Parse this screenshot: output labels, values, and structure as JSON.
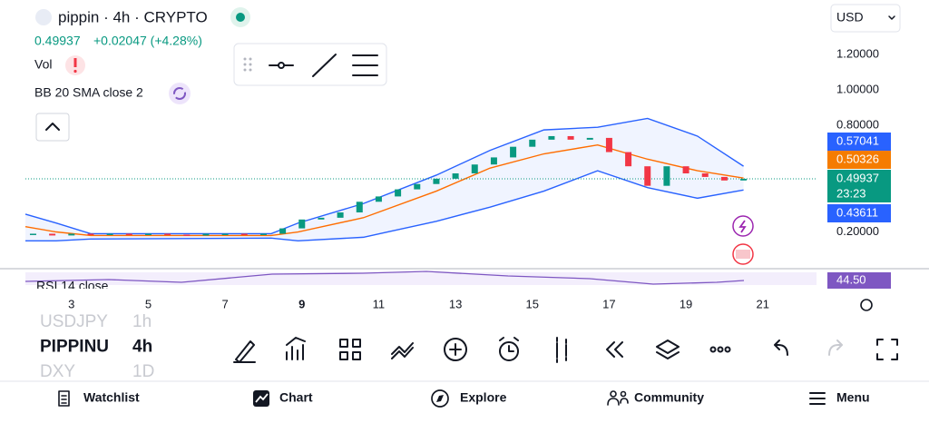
{
  "header": {
    "symbol": "pippin · 4h · CRYPTO",
    "price": "0.49937",
    "change": "+0.02047 (+4.28%)",
    "currency": "USD"
  },
  "indicators": {
    "volume": "Vol",
    "bollinger": "BB 20 SMA close 2",
    "rsi": "RSI 14 close",
    "rsi_value": "44.50"
  },
  "chart_data": {
    "type": "candlestick",
    "x": [
      2.0,
      2.5,
      3.0,
      3.5,
      4.0,
      4.5,
      5.0,
      5.5,
      6.0,
      6.5,
      7.0,
      7.5,
      8.0,
      8.5,
      9.0,
      9.5,
      10.0,
      10.5,
      11.0,
      11.5,
      12.0,
      12.5,
      13.0,
      13.5,
      14.0,
      14.5,
      15.0,
      15.5,
      16.0,
      16.5,
      17.0,
      17.5,
      18.0,
      18.5,
      19.0,
      19.5,
      20.0,
      20.5
    ],
    "values": [
      0.19,
      0.18,
      0.19,
      0.185,
      0.19,
      0.185,
      0.19,
      0.185,
      0.18,
      0.19,
      0.19,
      0.185,
      0.19,
      0.22,
      0.27,
      0.28,
      0.31,
      0.37,
      0.4,
      0.44,
      0.47,
      0.5,
      0.53,
      0.58,
      0.62,
      0.68,
      0.72,
      0.74,
      0.72,
      0.73,
      0.65,
      0.57,
      0.46,
      0.57,
      0.53,
      0.51,
      0.49,
      0.49937
    ],
    "up_color": "#089981",
    "down_color": "#f23645",
    "bands": {
      "x": [
        1.8,
        2.6,
        3.5,
        8.2,
        8.9,
        10.6,
        12.5,
        13.9,
        15.3,
        16.7,
        18.0,
        19.3,
        20.5
      ],
      "upper": [
        0.3,
        0.25,
        0.19,
        0.19,
        0.25,
        0.36,
        0.52,
        0.66,
        0.775,
        0.79,
        0.84,
        0.74,
        0.57041
      ],
      "lower": [
        0.15,
        0.15,
        0.16,
        0.165,
        0.15,
        0.17,
        0.26,
        0.34,
        0.43,
        0.545,
        0.45,
        0.39,
        0.43611
      ],
      "basis": [
        0.23,
        0.2,
        0.18,
        0.18,
        0.2,
        0.28,
        0.43,
        0.56,
        0.64,
        0.69,
        0.61,
        0.545,
        0.50326
      ],
      "band_color": "#2962ff",
      "basis_color": "#ff6d00"
    },
    "price_labels": [
      {
        "value": 0.57041,
        "color": "#2962ff"
      },
      {
        "value": 0.50326,
        "color": "#f57c00"
      },
      {
        "value": 0.49937,
        "color": "#089981",
        "countdown": "23:23"
      },
      {
        "value": 0.43611,
        "color": "#2962ff"
      }
    ],
    "ylim": [
      0,
      1.3
    ],
    "yticks": [
      {
        "value": 1.2,
        "label": "1.20000"
      },
      {
        "value": 1.0,
        "label": "1.00000"
      },
      {
        "value": 0.8,
        "label": "0.80000"
      },
      {
        "value": 0.2,
        "label": "0.20000"
      }
    ],
    "xlim": [
      1.8,
      22.4
    ],
    "xticks": [
      3,
      5,
      7,
      9,
      11,
      13,
      15,
      17,
      19,
      21
    ]
  },
  "symbols": [
    {
      "symbol": "USDJPY",
      "interval": "1h"
    },
    {
      "symbol": "PIPPINU",
      "interval": "4h"
    },
    {
      "symbol": "DXY",
      "interval": "1D"
    }
  ],
  "nav": [
    "Watchlist",
    "Chart",
    "Explore",
    "Community",
    "Menu"
  ]
}
